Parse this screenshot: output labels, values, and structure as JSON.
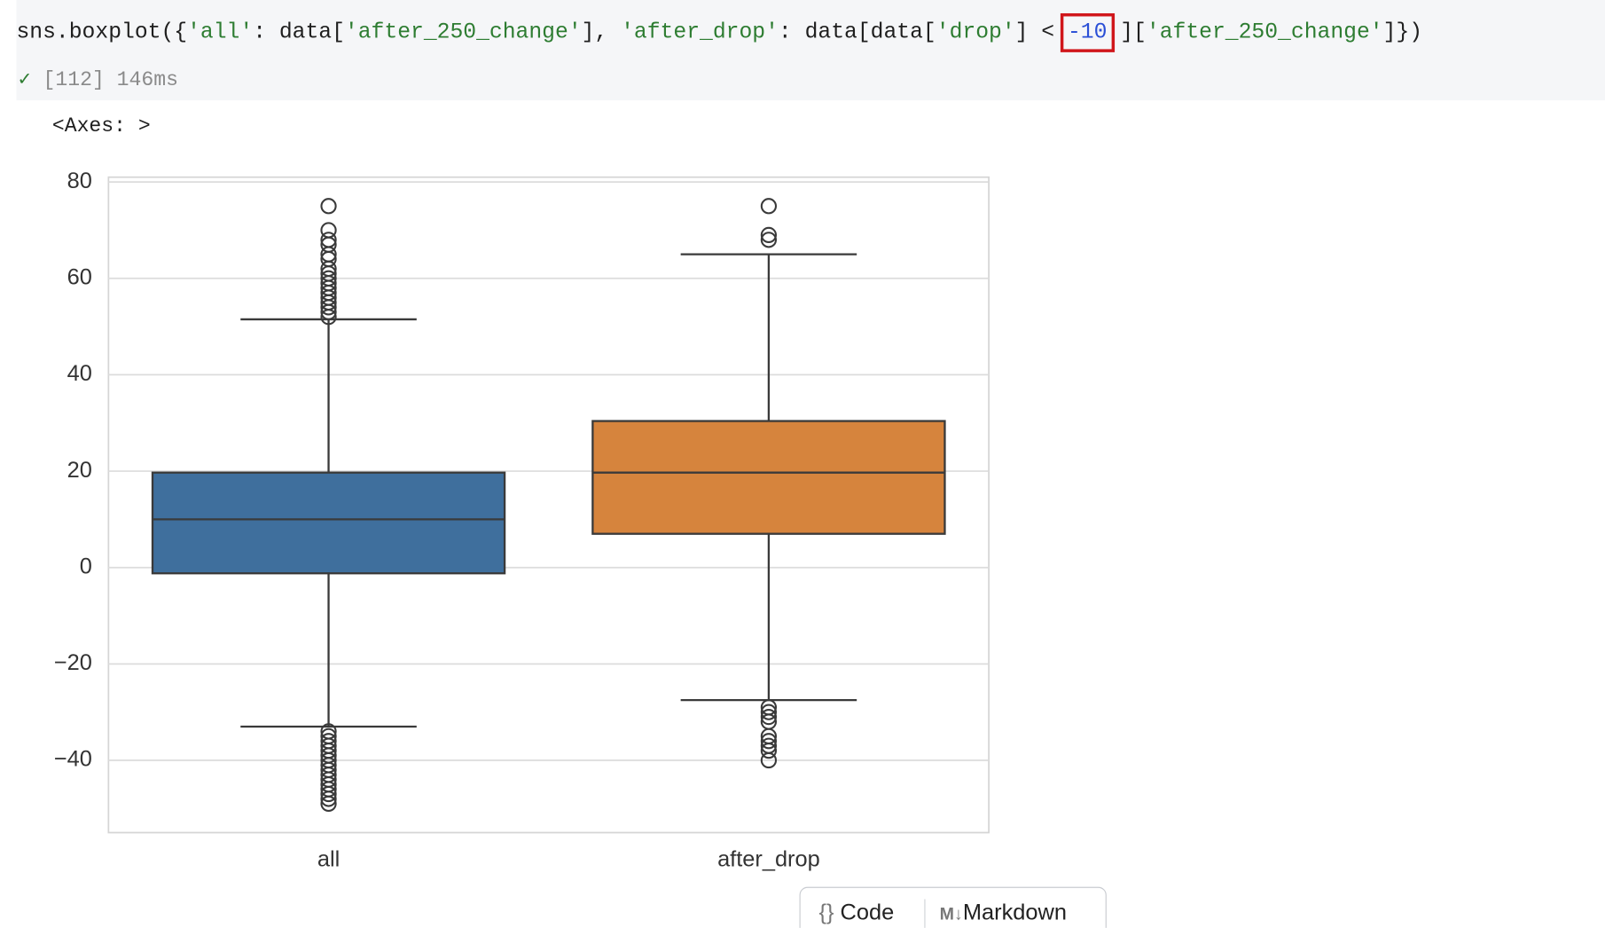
{
  "cell": {
    "code_tokens": [
      {
        "text": "sns.boxplot({",
        "color": "#1f1f1f"
      },
      {
        "text": "'all'",
        "color": "#2e7d32"
      },
      {
        "text": ": data[",
        "color": "#1f1f1f"
      },
      {
        "text": "'after_250_change'",
        "color": "#2e7d32"
      },
      {
        "text": "], ",
        "color": "#1f1f1f"
      },
      {
        "text": "'after_drop'",
        "color": "#2e7d32"
      },
      {
        "text": ": data[data[",
        "color": "#1f1f1f"
      },
      {
        "text": "'drop'",
        "color": "#2e7d32"
      },
      {
        "text": "] < ",
        "color": "#1f1f1f"
      },
      {
        "text": "-10",
        "color": "#2a4fd6",
        "highlight": true
      },
      {
        "text": " ][",
        "color": "#1f1f1f"
      },
      {
        "text": "'after_250_change'",
        "color": "#2e7d32"
      },
      {
        "text": "]})",
        "color": "#1f1f1f"
      }
    ],
    "status": "[112] 146ms",
    "output": "<Axes: >"
  },
  "chart_data": {
    "type": "box",
    "categories": [
      "all",
      "after_drop"
    ],
    "boxes": [
      {
        "color": "#3f6f9d",
        "whislo": -33,
        "q1": -1.2,
        "median": 10,
        "q3": 19.7,
        "whishi": 51.5,
        "fliers": [
          52,
          53,
          54,
          55,
          56,
          57,
          58,
          59,
          60,
          61,
          62,
          64,
          65,
          67,
          68,
          70,
          75,
          -34,
          -35,
          -36,
          -37,
          -38,
          -39,
          -40,
          -41,
          -42,
          -43,
          -44,
          -45,
          -46,
          -47,
          -48,
          -49
        ]
      },
      {
        "color": "#d6843d",
        "whislo": -27.5,
        "q1": 7,
        "median": 19.7,
        "q3": 30.4,
        "whishi": 65,
        "fliers": [
          68,
          69,
          75,
          -29,
          -30,
          -31,
          -32,
          -35,
          -36,
          -37,
          -38,
          -40
        ]
      }
    ],
    "ylim": [
      -55,
      81
    ],
    "yticks": [
      {
        "value": -40,
        "label": "−40"
      },
      {
        "value": -20,
        "label": "−20"
      },
      0,
      20,
      40,
      60,
      80
    ],
    "grid": true
  },
  "toolbar": {
    "buttons": [
      "Code",
      "Markdown"
    ]
  }
}
